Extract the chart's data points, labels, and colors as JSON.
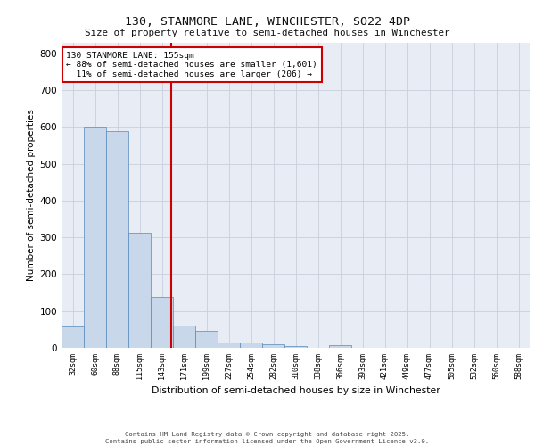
{
  "title": "130, STANMORE LANE, WINCHESTER, SO22 4DP",
  "subtitle": "Size of property relative to semi-detached houses in Winchester",
  "xlabel": "Distribution of semi-detached houses by size in Winchester",
  "ylabel": "Number of semi-detached properties",
  "categories": [
    "32sqm",
    "60sqm",
    "88sqm",
    "115sqm",
    "143sqm",
    "171sqm",
    "199sqm",
    "227sqm",
    "254sqm",
    "282sqm",
    "310sqm",
    "338sqm",
    "366sqm",
    "393sqm",
    "421sqm",
    "449sqm",
    "477sqm",
    "505sqm",
    "532sqm",
    "560sqm",
    "588sqm"
  ],
  "values": [
    57,
    601,
    590,
    312,
    137,
    60,
    45,
    15,
    15,
    9,
    5,
    0,
    8,
    0,
    0,
    0,
    0,
    0,
    0,
    0,
    0
  ],
  "bar_color": "#c8d8ea",
  "bar_edge_color": "#5588bb",
  "grid_color": "#c8d0dc",
  "background_color": "#e8ecf4",
  "vline_color": "#cc0000",
  "annotation_text": "130 STANMORE LANE: 155sqm\n← 88% of semi-detached houses are smaller (1,601)\n  11% of semi-detached houses are larger (206) →",
  "annotation_box_color": "#ffffff",
  "annotation_box_edge": "#cc0000",
  "footer_line1": "Contains HM Land Registry data © Crown copyright and database right 2025.",
  "footer_line2": "Contains public sector information licensed under the Open Government Licence v3.0.",
  "ylim": [
    0,
    830
  ],
  "yticks": [
    0,
    100,
    200,
    300,
    400,
    500,
    600,
    700,
    800
  ]
}
